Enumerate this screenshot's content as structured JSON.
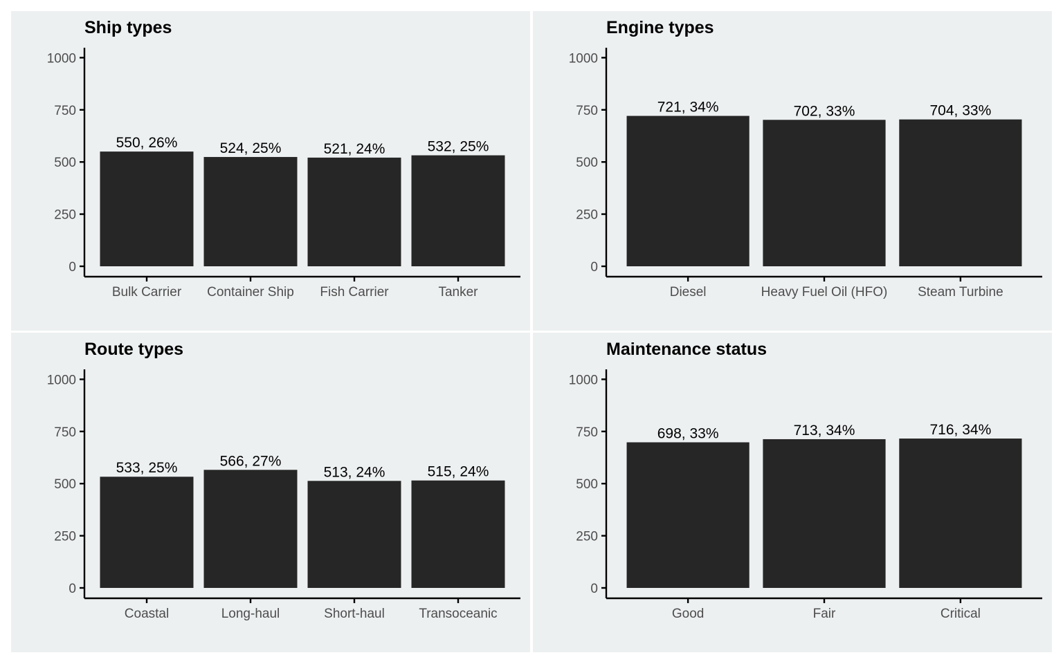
{
  "colors": {
    "panel_background": "#edf0f1",
    "bar_fill": "#262626",
    "axis_line": "#000000",
    "tick_label": "#4d4d4d",
    "data_label": "#000000"
  },
  "chart_data": [
    {
      "type": "bar",
      "title": "Ship types",
      "xlabel": "",
      "ylabel": "",
      "ylim": [
        0,
        1050
      ],
      "yticks": [
        0,
        250,
        500,
        750,
        1000
      ],
      "grid": false,
      "categories": [
        "Bulk Carrier",
        "Container Ship",
        "Fish Carrier",
        "Tanker"
      ],
      "values": [
        550,
        524,
        521,
        532
      ],
      "data_labels": [
        "550, 26%",
        "524, 25%",
        "521, 24%",
        "532, 25%"
      ]
    },
    {
      "type": "bar",
      "title": "Engine types",
      "xlabel": "",
      "ylabel": "",
      "ylim": [
        0,
        1050
      ],
      "yticks": [
        0,
        250,
        500,
        750,
        1000
      ],
      "grid": false,
      "categories": [
        "Diesel",
        "Heavy Fuel Oil (HFO)",
        "Steam Turbine"
      ],
      "values": [
        721,
        702,
        704
      ],
      "data_labels": [
        "721, 34%",
        "702, 33%",
        "704, 33%"
      ]
    },
    {
      "type": "bar",
      "title": "Route types",
      "xlabel": "",
      "ylabel": "",
      "ylim": [
        0,
        1050
      ],
      "yticks": [
        0,
        250,
        500,
        750,
        1000
      ],
      "grid": false,
      "categories": [
        "Coastal",
        "Long-haul",
        "Short-haul",
        "Transoceanic"
      ],
      "values": [
        533,
        566,
        513,
        515
      ],
      "data_labels": [
        "533, 25%",
        "566, 27%",
        "513, 24%",
        "515, 24%"
      ]
    },
    {
      "type": "bar",
      "title": "Maintenance status",
      "xlabel": "",
      "ylabel": "",
      "ylim": [
        0,
        1050
      ],
      "yticks": [
        0,
        250,
        500,
        750,
        1000
      ],
      "grid": false,
      "categories": [
        "Good",
        "Fair",
        "Critical"
      ],
      "values": [
        698,
        713,
        716
      ],
      "data_labels": [
        "698, 33%",
        "713, 34%",
        "716, 34%"
      ]
    }
  ]
}
